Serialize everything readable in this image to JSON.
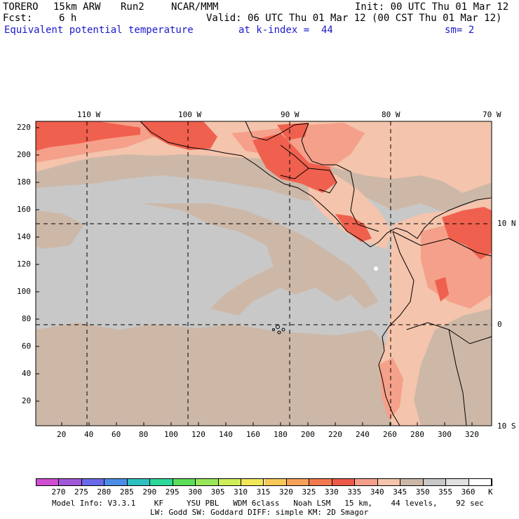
{
  "header": {
    "model_name": "TORERO",
    "resolution": "15km ARW",
    "run": "Run2",
    "org": "NCAR/MMM",
    "init": "Init: 00 UTC Thu 01 Mar 12",
    "fcst_label": "Fcst:",
    "fcst_value": "6 h",
    "valid": "Valid: 06 UTC Thu 01 Mar 12 (00 CST Thu 01 Mar 12)",
    "field": "Equivalent potential temperature",
    "level": "at k-index =  44",
    "smooth": "sm= 2"
  },
  "map": {
    "top_lon_labels": [
      "110 W",
      "100 W",
      "90 W",
      "80 W",
      "70 W"
    ],
    "right_lat_labels": [
      "10 N",
      "0",
      "10 S"
    ],
    "y_ticks": [
      "220",
      "200",
      "180",
      "160",
      "140",
      "120",
      "100",
      "80",
      "60",
      "40",
      "20"
    ],
    "x_ticks": [
      "20",
      "40",
      "60",
      "80",
      "100",
      "120",
      "140",
      "160",
      "180",
      "200",
      "220",
      "240",
      "260",
      "280",
      "300",
      "320"
    ],
    "colors": {
      "ocean": "#c8c8c8",
      "tan": "#cdb8a8",
      "light_salmon": "#f4c4ac",
      "salmon": "#f5a08a",
      "red": "#f0604e"
    }
  },
  "colorbar": {
    "unit": "K",
    "labels": [
      "270",
      "275",
      "280",
      "285",
      "290",
      "295",
      "300",
      "305",
      "310",
      "315",
      "320",
      "325",
      "330",
      "335",
      "340",
      "345",
      "350",
      "355",
      "360"
    ],
    "colors": [
      "#d04ed0",
      "#a057d8",
      "#6a6ae8",
      "#4a8ee8",
      "#2ec0c0",
      "#2ed89a",
      "#5ade5a",
      "#98e65a",
      "#cdee5a",
      "#f2e65a",
      "#f6c85a",
      "#f6a05a",
      "#f27a4e",
      "#ee5a4a",
      "#f5a08a",
      "#f4c4ac",
      "#cdb8a8",
      "#c8c8c8",
      "#e0e0e0",
      "#ffffff"
    ]
  },
  "footer": {
    "line1": "Model Info: V3.3.1    KF     YSU PBL   WDM 6class   Noah LSM   15 km,    44 levels,    92 sec",
    "line2": "LW: Godd SW: Goddard DIFF: simple KM: 2D Smagor"
  }
}
